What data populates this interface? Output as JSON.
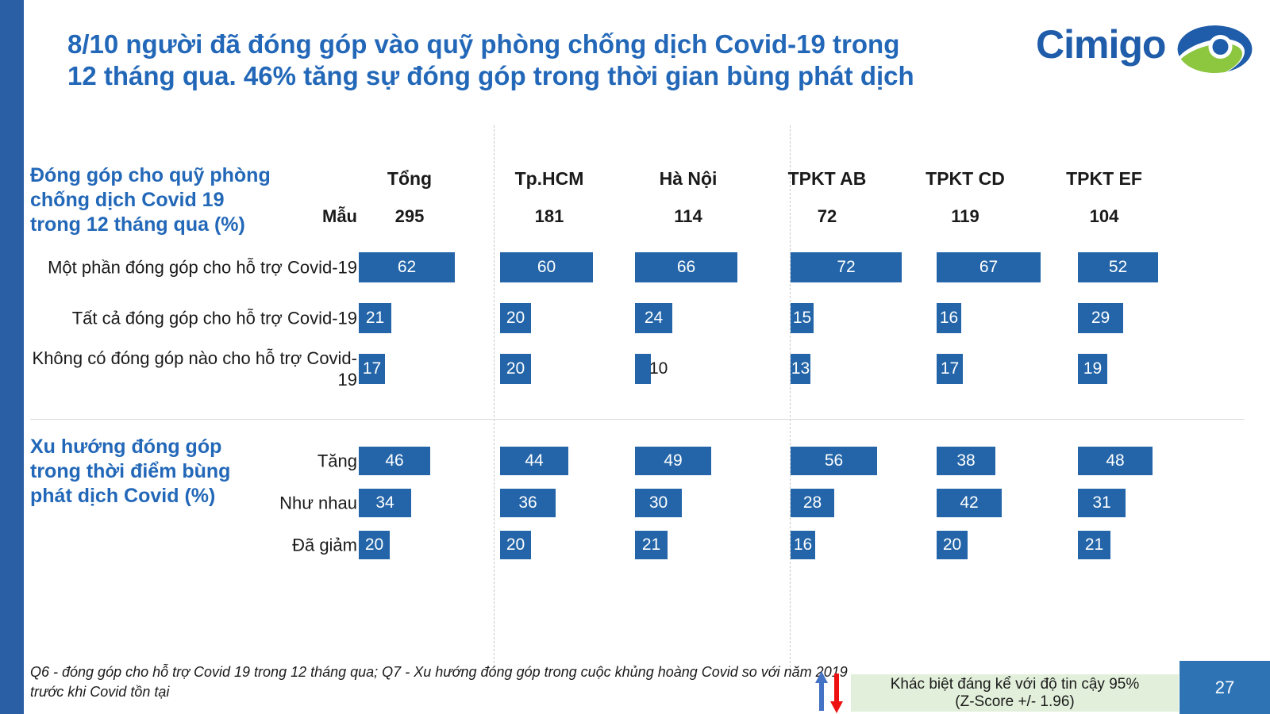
{
  "slide": {
    "title_lines": [
      "8/10 người đã đóng góp vào quỹ phòng chống dịch Covid-19 trong",
      "12 tháng qua. 46% tăng sự đóng góp trong thời gian bùng phát dịch"
    ],
    "page_number": "27"
  },
  "logo": {
    "wordmark": "Cimigo"
  },
  "table": {
    "sample_row_label": "Mẫu",
    "columns": [
      {
        "label": "Tổng",
        "sample": "295"
      },
      {
        "label": "Tp.HCM",
        "sample": "181"
      },
      {
        "label": "Hà Nội",
        "sample": "114"
      },
      {
        "label": "TPKT AB",
        "sample": "72"
      },
      {
        "label": "TPKT CD",
        "sample": "119"
      },
      {
        "label": "TPKT EF",
        "sample": "104"
      }
    ]
  },
  "chart_data": [
    {
      "type": "bar",
      "orientation": "horizontal",
      "title": "Đóng góp cho quỹ phòng chống dịch Covid 19 trong 12 tháng qua (%)",
      "title_lines": [
        "Đóng góp cho quỹ phòng",
        "chống dịch Covid 19",
        "trong 12 tháng qua (%)"
      ],
      "categories": [
        "Tổng",
        "Tp.HCM",
        "Hà Nội",
        "TPKT AB",
        "TPKT CD",
        "TPKT EF"
      ],
      "sample_sizes": [
        295,
        181,
        114,
        72,
        119,
        104
      ],
      "series": [
        {
          "name": "Một phần đóng góp cho hỗ trợ Covid-19",
          "values": [
            62,
            60,
            66,
            72,
            67,
            52
          ]
        },
        {
          "name": "Tất cả đóng góp cho hỗ trợ Covid-19",
          "values": [
            21,
            20,
            24,
            15,
            16,
            29
          ]
        },
        {
          "name": "Không có đóng góp nào cho hỗ trợ Covid-19",
          "values": [
            17,
            20,
            10,
            13,
            17,
            19
          ]
        }
      ],
      "value_axis_max": 100,
      "bar_color": "#2365A8",
      "value_labels": "inside-white, outside-black when bar too short"
    },
    {
      "type": "bar",
      "orientation": "horizontal",
      "title": "Xu hướng đóng góp trong thời điểm bùng phát dịch Covid (%)",
      "title_lines": [
        "Xu hướng đóng góp",
        "trong thời điểm bùng",
        "phát dịch Covid (%)"
      ],
      "categories": [
        "Tổng",
        "Tp.HCM",
        "Hà Nội",
        "TPKT AB",
        "TPKT CD",
        "TPKT EF"
      ],
      "sample_sizes": [
        295,
        181,
        114,
        72,
        119,
        104
      ],
      "series": [
        {
          "name": "Tăng",
          "values": [
            46,
            44,
            49,
            56,
            38,
            48
          ]
        },
        {
          "name": "Như nhau",
          "values": [
            34,
            36,
            30,
            28,
            42,
            31
          ]
        },
        {
          "name": "Đã giảm",
          "values": [
            20,
            20,
            21,
            16,
            20,
            21
          ]
        }
      ],
      "value_axis_max": 100,
      "bar_color": "#2365A8",
      "value_labels": "inside-white"
    }
  ],
  "footnote_lines": [
    "Q6 - đóng góp cho hỗ trợ Covid 19 trong 12 tháng qua; Q7 - Xu hướng đóng góp trong cuộc khủng hoàng Covid so với năm 2019",
    "trước khi Covid tồn tại"
  ],
  "significance_legend": {
    "line1": "Khác biệt đáng kể với độ tin cậy 95%",
    "line2": "(Z-Score +/- 1.96)",
    "up_arrow_meaning": "significantly higher",
    "down_arrow_meaning": "significantly lower"
  },
  "colors": {
    "bar_blue": "#2365A8",
    "title_blue": "#2368B8",
    "strip_blue": "#2B5FA5",
    "logo_blue": "#1F5CA9",
    "logo_green": "#8DC63F",
    "legend_green_bg": "#E2EFDA",
    "page_box_blue": "#2E74B5",
    "arrow_up_blue": "#4472C4",
    "arrow_down_red": "#EE1111"
  }
}
